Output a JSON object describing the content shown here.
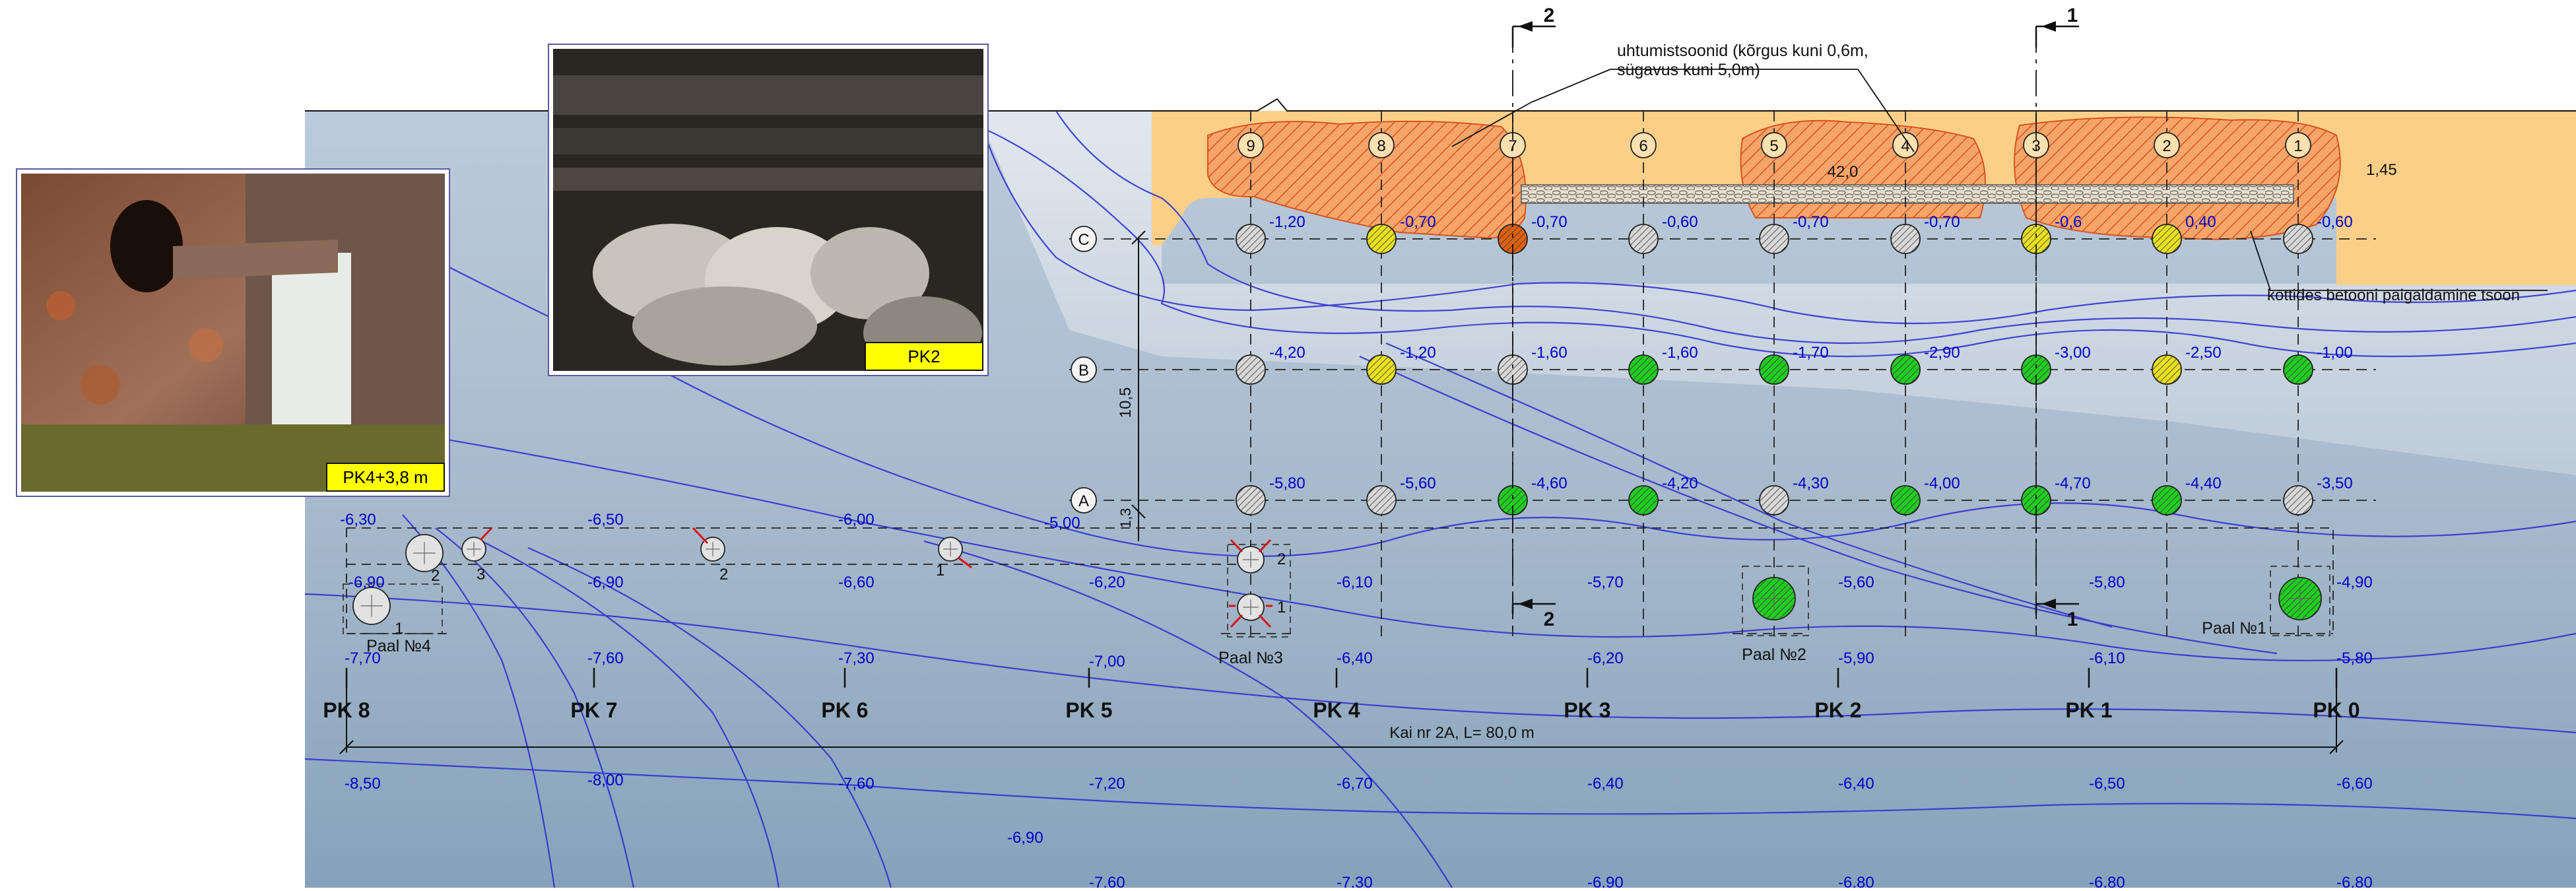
{
  "annotation": {
    "line1": "uhtumistsoonid (kõrgus kuni 0,6m,",
    "line2": "sügavus kuni 5,0m)",
    "bags_zone": "kottides betooni paigaldamine tsoon",
    "deck_length": "42,0",
    "deck_offset": "1,45",
    "bay_width": "10,5",
    "row_a_offset": "1,3",
    "quay_label": "Kai nr 2A, L= 80,0 m"
  },
  "photos": [
    {
      "label": "PK4+3,8 m"
    },
    {
      "label": "PK2"
    }
  ],
  "sections": [
    {
      "label": "2"
    },
    {
      "label": "1"
    }
  ],
  "axes": {
    "columns": [
      "9",
      "8",
      "7",
      "6",
      "5",
      "4",
      "3",
      "2",
      "1"
    ],
    "rows": [
      "C",
      "B",
      "A"
    ]
  },
  "stations": [
    "PK 8",
    "PK 7",
    "PK 6",
    "PK 5",
    "PK 4",
    "PK 3",
    "PK 2",
    "PK 1",
    "PK 0"
  ],
  "pile_rows": [
    {
      "row": "C",
      "depths": [
        "-1,20",
        "-0,70",
        "-0,70",
        "-0,60",
        "-0,70",
        "-0,70",
        "-0,6",
        "0,40",
        "-0,60"
      ],
      "status": [
        "grey",
        "yellow",
        "orange",
        "grey",
        "grey",
        "grey",
        "yellow",
        "yellow",
        "grey"
      ]
    },
    {
      "row": "B",
      "depths": [
        "-4,20",
        "-1,20",
        "-1,60",
        "-1,60",
        "-1,70",
        "-2,90",
        "-3,00",
        "-2,50",
        "-1,00"
      ],
      "status": [
        "grey",
        "yellow",
        "grey",
        "green",
        "green",
        "green",
        "green",
        "yellow",
        "green"
      ]
    },
    {
      "row": "A",
      "depths": [
        "-5,80",
        "-5,60",
        "-4,60",
        "-4,20",
        "-4,30",
        "-4,00",
        "-4,70",
        "-4,40",
        "-3,50"
      ],
      "status": [
        "grey",
        "grey",
        "green",
        "green",
        "grey",
        "green",
        "green",
        "green",
        "grey"
      ]
    }
  ],
  "old_piles": [
    {
      "name": "Paal №4"
    },
    {
      "name": "Paal №3"
    },
    {
      "name": "Paal №2"
    },
    {
      "name": "Paal №1"
    }
  ],
  "old_pile_numbers": [
    "1",
    "2",
    "3",
    "2",
    "1",
    "2",
    "1"
  ],
  "sea_depths": [
    "-6,30",
    "-6,50",
    "-6,00",
    "-5,00",
    "-6,90",
    "-6,90",
    "-6,60",
    "-6,20",
    "-6,10",
    "-5,70",
    "-5,60",
    "-5,80",
    "-4,90",
    "-7,70",
    "-7,60",
    "-7,30",
    "-7,00",
    "-6,40",
    "-6,20",
    "-5,90",
    "-6,10",
    "-5,80",
    "-8,50",
    "-8,00",
    "-7,60",
    "-7,20",
    "-6,70",
    "-6,40",
    "-6,40",
    "-6,50",
    "-6,60",
    "-6,90",
    "-7,60",
    "-7,30",
    "-6,90",
    "-6,80",
    "-6,80",
    "-6,80"
  ],
  "colors": {
    "water_top": "#b8c8d8",
    "water_bottom": "#8aa6be",
    "deck": "#fbcf88",
    "hatch": "#f08050",
    "pile_green": "#22cc22",
    "pile_yellow": "#e8e020",
    "pile_orange": "#e06010",
    "pile_grey": "#d8d8d8",
    "depth_text": "#0000cc",
    "contour": "#2a2ad0"
  }
}
